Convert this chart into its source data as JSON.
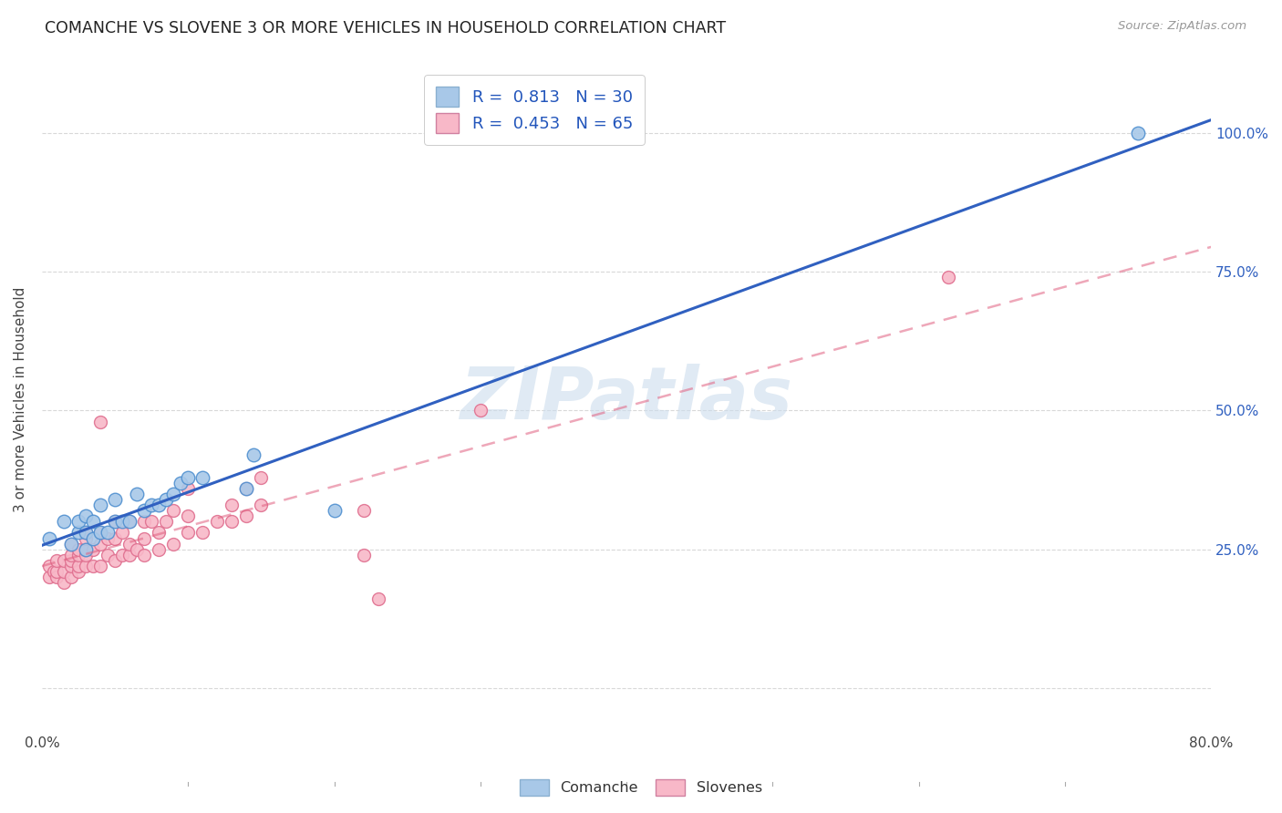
{
  "title": "COMANCHE VS SLOVENE 3 OR MORE VEHICLES IN HOUSEHOLD CORRELATION CHART",
  "source": "Source: ZipAtlas.com",
  "ylabel": "3 or more Vehicles in Household",
  "xlim": [
    0.0,
    0.8
  ],
  "ylim": [
    -0.08,
    1.12
  ],
  "xticks": [
    0.0,
    0.1,
    0.2,
    0.3,
    0.4,
    0.5,
    0.6,
    0.7,
    0.8
  ],
  "xticklabels": [
    "0.0%",
    "",
    "",
    "",
    "",
    "",
    "",
    "",
    "80.0%"
  ],
  "ytick_positions": [
    0.0,
    0.25,
    0.5,
    0.75,
    1.0
  ],
  "ytick_labels_right": [
    "",
    "25.0%",
    "50.0%",
    "75.0%",
    "100.0%"
  ],
  "watermark": "ZIPatlas",
  "comanche_color": "#a8c8e8",
  "slovene_color": "#f8b8c8",
  "comanche_edge_color": "#5090d0",
  "slovene_edge_color": "#e07090",
  "comanche_line_color": "#3060c0",
  "slovene_line_color": "#e06080",
  "comanche_R": 0.813,
  "comanche_N": 30,
  "slovene_R": 0.453,
  "slovene_N": 65,
  "comanche_x": [
    0.005,
    0.015,
    0.02,
    0.025,
    0.025,
    0.03,
    0.03,
    0.03,
    0.035,
    0.035,
    0.04,
    0.04,
    0.045,
    0.05,
    0.05,
    0.055,
    0.06,
    0.065,
    0.07,
    0.075,
    0.08,
    0.085,
    0.09,
    0.095,
    0.1,
    0.11,
    0.14,
    0.145,
    0.2,
    0.75
  ],
  "comanche_y": [
    0.27,
    0.3,
    0.26,
    0.28,
    0.3,
    0.25,
    0.28,
    0.31,
    0.27,
    0.3,
    0.28,
    0.33,
    0.28,
    0.3,
    0.34,
    0.3,
    0.3,
    0.35,
    0.32,
    0.33,
    0.33,
    0.34,
    0.35,
    0.37,
    0.38,
    0.38,
    0.36,
    0.42,
    0.32,
    1.0
  ],
  "slovene_x": [
    0.005,
    0.005,
    0.008,
    0.01,
    0.01,
    0.01,
    0.015,
    0.015,
    0.015,
    0.02,
    0.02,
    0.02,
    0.02,
    0.02,
    0.025,
    0.025,
    0.025,
    0.025,
    0.03,
    0.03,
    0.03,
    0.03,
    0.03,
    0.035,
    0.035,
    0.04,
    0.04,
    0.04,
    0.04,
    0.045,
    0.045,
    0.05,
    0.05,
    0.05,
    0.055,
    0.055,
    0.06,
    0.06,
    0.06,
    0.065,
    0.07,
    0.07,
    0.07,
    0.075,
    0.08,
    0.08,
    0.085,
    0.09,
    0.09,
    0.1,
    0.1,
    0.1,
    0.11,
    0.12,
    0.13,
    0.13,
    0.14,
    0.14,
    0.15,
    0.15,
    0.22,
    0.22,
    0.23,
    0.3,
    0.62
  ],
  "slovene_y": [
    0.2,
    0.22,
    0.21,
    0.2,
    0.21,
    0.23,
    0.19,
    0.21,
    0.23,
    0.2,
    0.22,
    0.23,
    0.24,
    0.26,
    0.21,
    0.22,
    0.24,
    0.25,
    0.22,
    0.24,
    0.25,
    0.27,
    0.28,
    0.22,
    0.25,
    0.22,
    0.26,
    0.48,
    0.28,
    0.24,
    0.27,
    0.23,
    0.27,
    0.3,
    0.24,
    0.28,
    0.24,
    0.26,
    0.3,
    0.25,
    0.24,
    0.27,
    0.3,
    0.3,
    0.25,
    0.28,
    0.3,
    0.26,
    0.32,
    0.28,
    0.31,
    0.36,
    0.28,
    0.3,
    0.3,
    0.33,
    0.31,
    0.36,
    0.33,
    0.38,
    0.24,
    0.32,
    0.16,
    0.5,
    0.74
  ],
  "background_color": "#ffffff",
  "grid_color": "#d8d8d8",
  "right_tick_color": "#3060c0"
}
